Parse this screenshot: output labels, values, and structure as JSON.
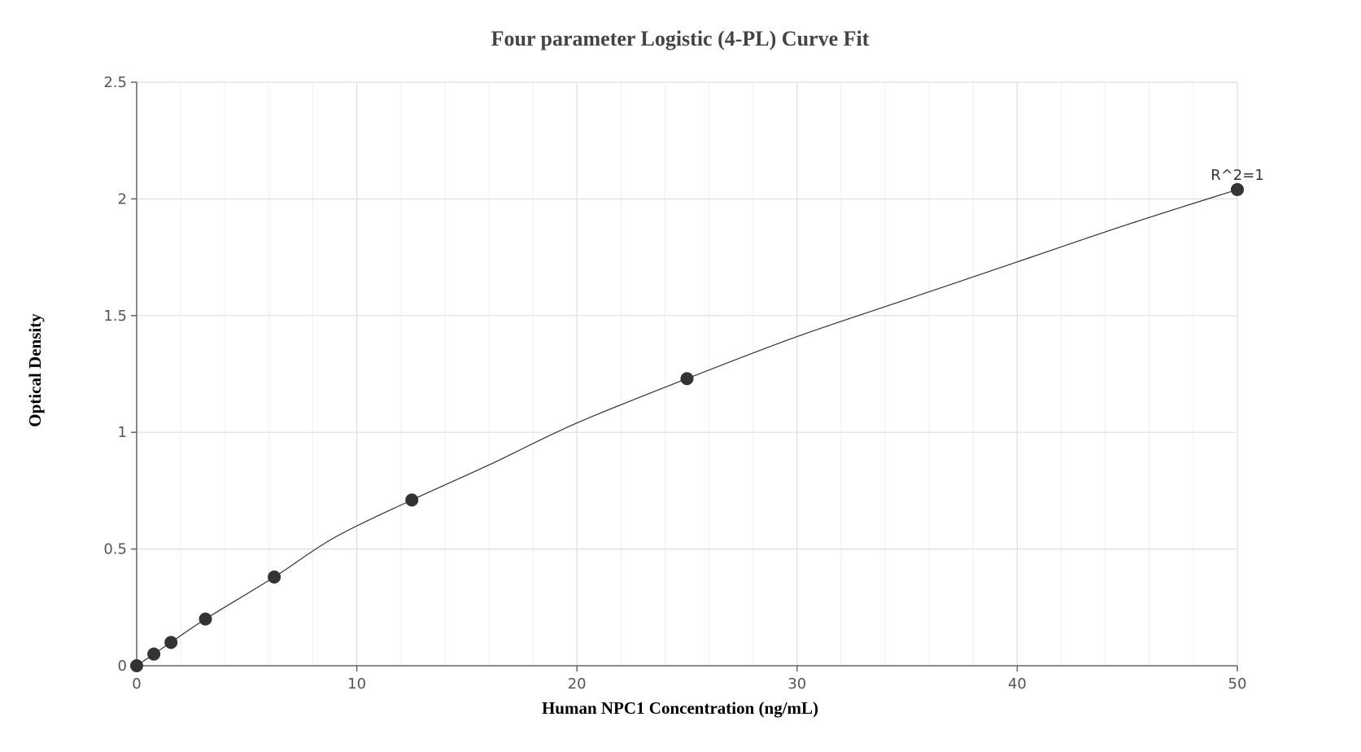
{
  "chart_data": {
    "type": "scatter",
    "title": "Four parameter Logistic (4-PL) Curve Fit",
    "xlabel": "Human NPC1 Concentration (ng/mL)",
    "ylabel": "Optical Density",
    "xlim": [
      0,
      50
    ],
    "ylim": [
      0,
      2.5
    ],
    "x_ticks": [
      0,
      10,
      20,
      30,
      40,
      50
    ],
    "y_ticks": [
      0,
      0.5,
      1,
      1.5,
      2,
      2.5
    ],
    "x_tick_labels": [
      "0",
      "10",
      "20",
      "30",
      "40",
      "50"
    ],
    "y_tick_labels": [
      "0",
      "0.5",
      "1",
      "1.5",
      "2",
      "2.5"
    ],
    "grid": true,
    "legend": "none",
    "series": [
      {
        "x": [
          0,
          0.78,
          1.56,
          3.125,
          6.25,
          12.5,
          25,
          50
        ],
        "y": [
          0.0,
          0.05,
          0.1,
          0.2,
          0.38,
          0.71,
          1.23,
          2.04
        ]
      }
    ],
    "fit_curve": {
      "x": [
        0,
        0.78,
        1.56,
        3.125,
        6.25,
        9,
        12.5,
        16,
        20,
        25,
        30,
        35,
        40,
        45,
        50
      ],
      "y": [
        0.0,
        0.05,
        0.1,
        0.2,
        0.38,
        0.55,
        0.71,
        0.86,
        1.04,
        1.23,
        1.41,
        1.57,
        1.73,
        1.89,
        2.04
      ]
    },
    "annotations": [
      {
        "text": "R^2=1",
        "x": 50,
        "y": 2.04
      }
    ]
  }
}
